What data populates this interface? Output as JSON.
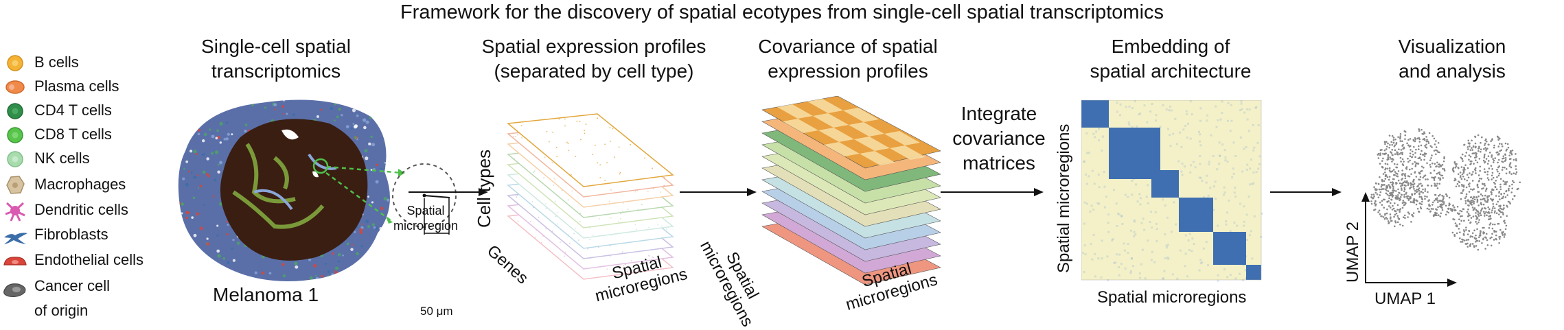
{
  "title": "Framework for the discovery of spatial ecotypes from single-cell spatial transcriptomics",
  "legend": [
    {
      "label": "B cells",
      "color": "#f5b335",
      "icon": "round-cell-icon"
    },
    {
      "label": "Plasma cells",
      "color": "#f08a4b",
      "icon": "oval-cell-icon"
    },
    {
      "label": "CD4 T cells",
      "color": "#2f8f4a",
      "icon": "round-cell-icon"
    },
    {
      "label": "CD8 T cells",
      "color": "#57c44a",
      "icon": "round-cell-icon"
    },
    {
      "label": "NK cells",
      "color": "#a8dcae",
      "icon": "round-cell-icon"
    },
    {
      "label": "Macrophages",
      "color": "#d8c3a0",
      "icon": "macrophage-icon"
    },
    {
      "label": "Dendritic cells",
      "color": "#d95ab0",
      "icon": "dendritic-icon"
    },
    {
      "label": "Fibroblasts",
      "color": "#3b6ea8",
      "icon": "fibroblast-icon"
    },
    {
      "label": "Endothelial cells",
      "color": "#d9453a",
      "icon": "endothelial-icon"
    },
    {
      "label_line1": "Cancer cell",
      "label_line2": "of origin",
      "color": "#666666",
      "icon": "cancer-cell-icon"
    }
  ],
  "panels": {
    "p1": {
      "line1": "Single-cell spatial",
      "line2": "transcriptomics",
      "sample": "Melanoma 1",
      "region_l1": "Spatial",
      "region_l2": "microregion",
      "scale": "50 μm"
    },
    "p2": {
      "line1": "Spatial expression profiles",
      "line2": "(separated by cell type)",
      "axis_celltypes": "Cell types",
      "axis_genes": "Genes",
      "axis_regions_l1": "Spatial",
      "axis_regions_l2": "microregions"
    },
    "p3": {
      "line1": "Covariance of spatial",
      "line2": "expression profiles",
      "axis_regions_left_l1": "Spatial",
      "axis_regions_left_l2": "microregions",
      "axis_regions_right_l1": "Spatial",
      "axis_regions_right_l2": "microregions"
    },
    "integrate": {
      "line1": "Integrate",
      "line2": "covariance",
      "line3": "matrices"
    },
    "p4": {
      "line1": "Embedding of",
      "line2": "spatial architecture",
      "ylabel": "Spatial microregions",
      "xlabel": "Spatial microregions"
    },
    "p5": {
      "line1": "Visualization",
      "line2": "and analysis",
      "xlabel": "UMAP 1",
      "ylabel": "UMAP 2"
    }
  },
  "colors": {
    "layers": [
      "#e2a73c",
      "#f0b7a0",
      "#f5d0a8",
      "#b8d8b0",
      "#cfe3b8",
      "#cfe9e0",
      "#b9d9e6",
      "#c9c0e3",
      "#e3c0e3",
      "#f3c0c8"
    ],
    "cov_layers": [
      "#e8a040",
      "#f4b67a",
      "#7fb87a",
      "#c6e0a8",
      "#dde8b8",
      "#e3dfb8",
      "#c5e1e4",
      "#b8cfe8",
      "#c7b8e0",
      "#d2a9d6",
      "#ef9680"
    ],
    "heatmap_blue": "#3f6fb0",
    "heatmap_light": "#f4f1c8"
  }
}
